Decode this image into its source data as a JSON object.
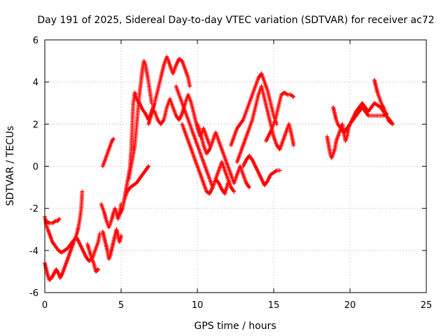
{
  "chart_data": {
    "type": "scatter",
    "title": "Day 191 of 2025, Sidereal Day-to-day VTEC variation (SDTVAR) for receiver ac72",
    "xlabel": "GPS time / hours",
    "ylabel": "SDTVAR / TECUs",
    "xlim": [
      0,
      25
    ],
    "ylim": [
      -6,
      6
    ],
    "xticks": [
      0,
      5,
      10,
      15,
      20,
      25
    ],
    "yticks": [
      -6,
      -4,
      -2,
      0,
      2,
      4,
      6
    ],
    "grid": true,
    "marker": "plus",
    "color": "#ff0000",
    "traces": [
      [
        [
          0.0,
          -2.4
        ],
        [
          0.1,
          -2.8
        ],
        [
          0.2,
          -3.0
        ],
        [
          0.35,
          -3.3
        ],
        [
          0.5,
          -3.6
        ],
        [
          0.7,
          -3.8
        ],
        [
          0.9,
          -4.0
        ],
        [
          1.1,
          -4.1
        ],
        [
          1.3,
          -4.0
        ],
        [
          1.5,
          -3.9
        ],
        [
          1.7,
          -3.7
        ],
        [
          1.9,
          -3.5
        ],
        [
          2.1,
          -3.4
        ],
        [
          2.3,
          -3.7
        ],
        [
          2.5,
          -4.0
        ],
        [
          2.7,
          -4.3
        ],
        [
          2.9,
          -4.5
        ],
        [
          3.1,
          -4.4
        ],
        [
          3.3,
          -4.0
        ],
        [
          3.5,
          -3.6
        ],
        [
          3.6,
          -3.2
        ]
      ],
      [
        [
          0.0,
          -4.6
        ],
        [
          0.1,
          -4.9
        ],
        [
          0.2,
          -5.2
        ],
        [
          0.3,
          -5.4
        ],
        [
          0.45,
          -5.3
        ],
        [
          0.6,
          -5.1
        ],
        [
          0.75,
          -4.9
        ],
        [
          0.9,
          -5.1
        ],
        [
          1.0,
          -5.3
        ],
        [
          1.15,
          -5.1
        ],
        [
          1.3,
          -4.8
        ],
        [
          1.45,
          -4.5
        ],
        [
          1.6,
          -4.2
        ],
        [
          1.75,
          -3.9
        ],
        [
          1.9,
          -3.6
        ],
        [
          2.0,
          -3.4
        ],
        [
          2.1,
          -3.2
        ],
        [
          2.2,
          -2.9
        ],
        [
          2.3,
          -2.5
        ],
        [
          2.4,
          -1.9
        ],
        [
          2.45,
          -1.2
        ]
      ],
      [
        [
          0.1,
          -2.6
        ],
        [
          0.3,
          -2.7
        ],
        [
          0.5,
          -2.7
        ],
        [
          0.7,
          -2.6
        ],
        [
          0.85,
          -2.6
        ],
        [
          0.95,
          -2.5
        ]
      ],
      [
        [
          2.8,
          -3.7
        ],
        [
          3.0,
          -4.2
        ],
        [
          3.2,
          -4.6
        ],
        [
          3.35,
          -5.0
        ],
        [
          3.5,
          -4.9
        ]
      ],
      [
        [
          3.7,
          -1.8
        ],
        [
          3.8,
          -2.0
        ],
        [
          3.9,
          -2.2
        ],
        [
          4.0,
          -2.5
        ],
        [
          4.1,
          -2.7
        ],
        [
          4.2,
          -2.9
        ],
        [
          4.3,
          -2.7
        ],
        [
          4.4,
          -2.5
        ],
        [
          4.5,
          -2.2
        ],
        [
          4.6,
          -2.0
        ],
        [
          4.7,
          -2.2
        ],
        [
          4.8,
          -2.5
        ],
        [
          4.9,
          -2.2
        ],
        [
          5.0,
          -1.8
        ]
      ],
      [
        [
          3.8,
          0.0
        ],
        [
          3.9,
          0.2
        ],
        [
          4.0,
          0.4
        ],
        [
          4.1,
          0.6
        ],
        [
          4.2,
          0.8
        ],
        [
          4.3,
          1.0
        ],
        [
          4.4,
          1.2
        ],
        [
          4.5,
          1.3
        ]
      ],
      [
        [
          3.8,
          -3.1
        ],
        [
          3.9,
          -3.4
        ],
        [
          4.0,
          -3.7
        ],
        [
          4.1,
          -4.0
        ],
        [
          4.2,
          -4.4
        ],
        [
          4.3,
          -4.2
        ],
        [
          4.4,
          -3.9
        ],
        [
          4.5,
          -3.6
        ],
        [
          4.6,
          -3.3
        ],
        [
          4.7,
          -3.0
        ],
        [
          4.8,
          -3.3
        ],
        [
          4.9,
          -3.6
        ],
        [
          5.0,
          -3.3
        ]
      ],
      [
        [
          4.9,
          -2.3
        ],
        [
          5.1,
          -2.0
        ],
        [
          5.2,
          -1.6
        ],
        [
          5.3,
          -1.2
        ],
        [
          5.4,
          -0.8
        ],
        [
          5.5,
          -0.4
        ],
        [
          5.6,
          0.0
        ],
        [
          5.65,
          0.6
        ],
        [
          5.7,
          1.4
        ],
        [
          5.75,
          2.2
        ],
        [
          5.8,
          3.0
        ],
        [
          5.9,
          3.5
        ],
        [
          6.0,
          3.2
        ],
        [
          6.2,
          3.0
        ],
        [
          6.4,
          2.7
        ],
        [
          6.6,
          2.5
        ],
        [
          6.8,
          2.2
        ],
        [
          7.0,
          2.6
        ],
        [
          7.2,
          3.0
        ]
      ],
      [
        [
          5.2,
          -1.6
        ],
        [
          5.4,
          -1.2
        ],
        [
          5.6,
          -1.0
        ],
        [
          5.8,
          -0.9
        ],
        [
          6.0,
          -0.8
        ],
        [
          6.2,
          -0.6
        ],
        [
          6.4,
          -0.4
        ],
        [
          6.6,
          -0.2
        ],
        [
          6.8,
          0.0
        ]
      ],
      [
        [
          5.5,
          -0.6
        ],
        [
          5.7,
          0.2
        ],
        [
          5.9,
          1.0
        ],
        [
          6.0,
          1.8
        ],
        [
          6.1,
          2.6
        ],
        [
          6.2,
          3.4
        ],
        [
          6.3,
          4.0
        ],
        [
          6.4,
          4.6
        ],
        [
          6.5,
          5.0
        ],
        [
          6.6,
          4.8
        ],
        [
          6.7,
          4.4
        ],
        [
          6.8,
          4.0
        ],
        [
          6.9,
          3.5
        ],
        [
          7.0,
          3.0
        ]
      ],
      [
        [
          6.8,
          2.0
        ],
        [
          7.0,
          2.5
        ],
        [
          7.2,
          3.0
        ],
        [
          7.4,
          3.6
        ],
        [
          7.6,
          4.2
        ],
        [
          7.8,
          4.8
        ],
        [
          8.0,
          5.2
        ],
        [
          8.2,
          4.8
        ],
        [
          8.4,
          4.4
        ],
        [
          8.6,
          4.8
        ],
        [
          8.8,
          5.1
        ],
        [
          9.0,
          5.0
        ],
        [
          9.2,
          4.6
        ],
        [
          9.4,
          4.2
        ],
        [
          9.5,
          3.8
        ]
      ],
      [
        [
          7.2,
          2.6
        ],
        [
          7.4,
          2.2
        ],
        [
          7.6,
          2.0
        ],
        [
          7.8,
          2.2
        ],
        [
          8.0,
          2.8
        ],
        [
          8.2,
          3.2
        ],
        [
          8.4,
          2.8
        ],
        [
          8.6,
          2.4
        ],
        [
          8.8,
          2.2
        ],
        [
          9.0,
          2.5
        ],
        [
          9.2,
          3.0
        ],
        [
          9.4,
          3.4
        ],
        [
          9.6,
          3.0
        ],
        [
          9.8,
          2.4
        ],
        [
          10.0,
          1.8
        ],
        [
          10.2,
          1.4
        ],
        [
          10.4,
          1.8
        ],
        [
          10.6,
          1.4
        ],
        [
          10.8,
          1.0
        ]
      ],
      [
        [
          8.6,
          3.8
        ],
        [
          8.8,
          3.4
        ],
        [
          9.0,
          3.0
        ],
        [
          9.2,
          2.6
        ],
        [
          9.4,
          2.2
        ],
        [
          9.6,
          1.8
        ],
        [
          9.8,
          1.4
        ],
        [
          10.0,
          1.0
        ],
        [
          10.2,
          0.6
        ],
        [
          10.4,
          0.2
        ],
        [
          10.6,
          -0.2
        ],
        [
          10.8,
          -0.6
        ],
        [
          11.0,
          -1.0
        ],
        [
          11.2,
          -0.6
        ],
        [
          11.4,
          -0.2
        ],
        [
          11.6,
          0.2
        ],
        [
          11.8,
          -0.2
        ],
        [
          12.0,
          -0.6
        ],
        [
          12.2,
          -1.0
        ],
        [
          12.4,
          -1.2
        ]
      ],
      [
        [
          9.0,
          2.0
        ],
        [
          9.2,
          1.6
        ],
        [
          9.4,
          1.2
        ],
        [
          9.6,
          0.8
        ],
        [
          9.8,
          0.4
        ],
        [
          10.0,
          0.0
        ],
        [
          10.2,
          -0.4
        ],
        [
          10.4,
          -0.8
        ],
        [
          10.6,
          -1.2
        ],
        [
          10.8,
          -1.3
        ],
        [
          11.0,
          -1.0
        ],
        [
          11.2,
          -0.6
        ],
        [
          11.4,
          -0.8
        ],
        [
          11.6,
          -1.1
        ],
        [
          11.8,
          -1.3
        ],
        [
          12.0,
          -0.8
        ]
      ],
      [
        [
          10.0,
          2.0
        ],
        [
          10.2,
          1.6
        ],
        [
          10.4,
          1.0
        ],
        [
          10.6,
          0.6
        ],
        [
          10.8,
          0.8
        ],
        [
          11.0,
          1.2
        ],
        [
          11.2,
          1.6
        ],
        [
          11.4,
          1.2
        ],
        [
          11.6,
          0.8
        ],
        [
          11.8,
          0.4
        ],
        [
          12.0,
          0.0
        ],
        [
          12.2,
          -0.4
        ],
        [
          12.4,
          -0.8
        ],
        [
          12.6,
          -0.4
        ],
        [
          12.8,
          0.0
        ],
        [
          13.0,
          -0.4
        ],
        [
          13.2,
          -0.8
        ],
        [
          13.4,
          -1.0
        ]
      ],
      [
        [
          12.2,
          1.0
        ],
        [
          12.4,
          1.4
        ],
        [
          12.6,
          1.8
        ],
        [
          12.8,
          2.0
        ],
        [
          13.0,
          2.2
        ],
        [
          13.2,
          2.6
        ],
        [
          13.4,
          3.0
        ],
        [
          13.6,
          3.4
        ],
        [
          13.8,
          3.8
        ],
        [
          14.0,
          4.2
        ],
        [
          14.2,
          4.4
        ],
        [
          14.4,
          4.0
        ],
        [
          14.6,
          3.6
        ],
        [
          14.8,
          3.0
        ],
        [
          15.0,
          2.4
        ],
        [
          15.2,
          2.0
        ]
      ],
      [
        [
          12.6,
          0.2
        ],
        [
          12.8,
          0.6
        ],
        [
          13.0,
          1.0
        ],
        [
          13.2,
          1.4
        ],
        [
          13.4,
          1.8
        ],
        [
          13.6,
          2.2
        ],
        [
          13.8,
          2.8
        ],
        [
          14.0,
          3.4
        ],
        [
          14.2,
          3.8
        ],
        [
          14.4,
          3.2
        ],
        [
          14.6,
          2.6
        ],
        [
          14.8,
          2.0
        ],
        [
          15.0,
          1.4
        ],
        [
          15.2,
          1.0
        ],
        [
          15.4,
          0.8
        ],
        [
          15.6,
          1.2
        ],
        [
          15.8,
          1.6
        ],
        [
          16.0,
          2.0
        ],
        [
          16.2,
          1.4
        ],
        [
          16.3,
          1.0
        ]
      ],
      [
        [
          13.0,
          0.0
        ],
        [
          13.2,
          0.3
        ],
        [
          13.4,
          0.5
        ],
        [
          13.6,
          0.3
        ],
        [
          13.8,
          0.0
        ],
        [
          14.0,
          -0.3
        ],
        [
          14.2,
          -0.6
        ],
        [
          14.4,
          -0.9
        ],
        [
          14.6,
          -0.7
        ],
        [
          14.8,
          -0.4
        ],
        [
          15.0,
          -0.3
        ],
        [
          15.2,
          -0.2
        ],
        [
          15.4,
          -0.2
        ]
      ],
      [
        [
          14.5,
          1.2
        ],
        [
          14.7,
          1.5
        ],
        [
          14.9,
          1.8
        ],
        [
          15.1,
          2.2
        ],
        [
          15.3,
          2.8
        ],
        [
          15.5,
          3.4
        ],
        [
          15.7,
          3.5
        ],
        [
          15.9,
          3.4
        ],
        [
          16.1,
          3.4
        ],
        [
          16.3,
          3.3
        ]
      ],
      [
        [
          18.5,
          1.4
        ],
        [
          18.6,
          1.0
        ],
        [
          18.7,
          0.6
        ],
        [
          18.8,
          0.4
        ],
        [
          18.9,
          0.6
        ],
        [
          19.0,
          0.8
        ],
        [
          19.1,
          1.2
        ],
        [
          19.2,
          1.4
        ],
        [
          19.3,
          1.6
        ],
        [
          19.4,
          1.8
        ],
        [
          19.5,
          2.0
        ],
        [
          19.6,
          1.6
        ],
        [
          19.7,
          1.2
        ],
        [
          19.8,
          1.4
        ],
        [
          19.9,
          1.8
        ],
        [
          20.0,
          2.0
        ],
        [
          20.2,
          2.2
        ],
        [
          20.4,
          2.4
        ],
        [
          20.6,
          2.6
        ],
        [
          20.8,
          2.8
        ],
        [
          21.0,
          2.6
        ],
        [
          21.2,
          2.4
        ],
        [
          21.4,
          2.4
        ],
        [
          21.6,
          2.4
        ],
        [
          21.8,
          2.4
        ],
        [
          22.0,
          2.4
        ],
        [
          22.2,
          2.4
        ],
        [
          22.4,
          2.5
        ]
      ],
      [
        [
          18.9,
          2.8
        ],
        [
          19.0,
          2.5
        ],
        [
          19.1,
          2.2
        ],
        [
          19.2,
          2.0
        ],
        [
          19.4,
          1.8
        ],
        [
          19.6,
          1.6
        ],
        [
          19.8,
          1.8
        ],
        [
          20.0,
          2.0
        ],
        [
          20.2,
          2.3
        ],
        [
          20.4,
          2.6
        ],
        [
          20.6,
          2.8
        ],
        [
          20.8,
          3.0
        ],
        [
          21.0,
          2.8
        ],
        [
          21.2,
          2.6
        ],
        [
          21.4,
          2.8
        ],
        [
          21.6,
          3.0
        ],
        [
          21.8,
          2.9
        ],
        [
          22.0,
          2.8
        ],
        [
          22.2,
          2.6
        ],
        [
          22.4,
          2.4
        ],
        [
          22.6,
          2.2
        ],
        [
          22.8,
          2.0
        ]
      ],
      [
        [
          21.6,
          4.1
        ],
        [
          21.7,
          3.8
        ],
        [
          21.8,
          3.5
        ],
        [
          21.9,
          3.3
        ],
        [
          22.0,
          3.1
        ],
        [
          22.1,
          2.9
        ],
        [
          22.2,
          2.8
        ],
        [
          22.3,
          2.6
        ],
        [
          22.4,
          2.4
        ],
        [
          22.5,
          2.2
        ],
        [
          22.6,
          2.1
        ],
        [
          22.8,
          2.0
        ]
      ]
    ]
  }
}
